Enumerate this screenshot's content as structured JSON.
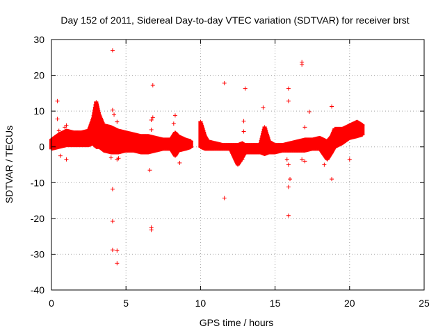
{
  "chart_data": {
    "type": "scatter",
    "title": "Day 152 of 2011, Sidereal Day-to-day VTEC variation (SDTVAR) for receiver brst",
    "xlabel": "GPS time / hours",
    "ylabel": "SDTVAR / TECUs",
    "xlim": [
      0,
      25
    ],
    "ylim": [
      -40,
      30
    ],
    "xticks": [
      0,
      5,
      10,
      15,
      20,
      25
    ],
    "yticks": [
      -40,
      -30,
      -20,
      -10,
      0,
      10,
      20,
      30
    ],
    "grid": true,
    "marker": "+",
    "color": "#ff0000",
    "series": [
      {
        "name": "SDTVAR",
        "band": [
          [
            0.0,
            -0.5,
            2.0
          ],
          [
            0.5,
            0.0,
            3.5
          ],
          [
            1.0,
            0.5,
            4.5
          ],
          [
            1.5,
            0.5,
            4.0
          ],
          [
            2.0,
            0.5,
            4.0
          ],
          [
            2.5,
            0.5,
            4.5
          ],
          [
            2.8,
            1.0,
            8.0
          ],
          [
            3.0,
            0.0,
            12.5
          ],
          [
            3.2,
            0.0,
            9.0
          ],
          [
            3.5,
            -1.0,
            6.0
          ],
          [
            4.0,
            -1.5,
            5.5
          ],
          [
            4.5,
            -1.5,
            4.5
          ],
          [
            5.0,
            -1.0,
            4.0
          ],
          [
            5.5,
            -1.0,
            3.5
          ],
          [
            6.0,
            -1.5,
            3.0
          ],
          [
            6.5,
            -1.5,
            3.0
          ],
          [
            7.0,
            -1.0,
            2.5
          ],
          [
            7.5,
            -0.5,
            2.0
          ],
          [
            8.0,
            -0.5,
            2.0
          ],
          [
            8.3,
            -2.5,
            4.0
          ],
          [
            8.5,
            -1.0,
            3.0
          ],
          [
            9.0,
            -0.5,
            2.0
          ],
          [
            9.4,
            0.0,
            1.5
          ],
          [
            10.0,
            0.0,
            7.0
          ],
          [
            10.3,
            -0.5,
            3.0
          ],
          [
            10.5,
            -0.5,
            1.5
          ],
          [
            11.0,
            -0.5,
            1.0
          ],
          [
            11.5,
            -0.5,
            0.5
          ],
          [
            12.0,
            -0.5,
            0.5
          ],
          [
            12.5,
            -5.0,
            0.5
          ],
          [
            12.8,
            -3.0,
            1.0
          ],
          [
            13.0,
            -1.5,
            0.5
          ],
          [
            13.5,
            -1.5,
            0.5
          ],
          [
            14.0,
            -1.5,
            0.5
          ],
          [
            14.3,
            -2.0,
            5.5
          ],
          [
            14.6,
            -1.5,
            1.5
          ],
          [
            15.0,
            -1.5,
            0.5
          ],
          [
            15.5,
            -1.0,
            0.5
          ],
          [
            16.0,
            -1.0,
            1.0
          ],
          [
            16.5,
            -1.0,
            1.5
          ],
          [
            17.0,
            -1.0,
            2.0
          ],
          [
            17.5,
            -0.5,
            2.0
          ],
          [
            18.0,
            -0.5,
            2.5
          ],
          [
            18.5,
            -3.5,
            1.5
          ],
          [
            18.8,
            -1.5,
            3.0
          ],
          [
            19.0,
            0.0,
            5.0
          ],
          [
            19.5,
            1.0,
            5.0
          ],
          [
            20.0,
            2.5,
            6.0
          ],
          [
            20.5,
            3.0,
            7.0
          ],
          [
            20.9,
            3.5,
            6.0
          ]
        ],
        "points": [
          [
            4.1,
            27.0
          ],
          [
            16.8,
            23.7
          ],
          [
            16.8,
            23.0
          ],
          [
            11.6,
            17.8
          ],
          [
            6.8,
            17.2
          ],
          [
            13.0,
            16.3
          ],
          [
            15.9,
            16.3
          ],
          [
            15.9,
            12.8
          ],
          [
            0.4,
            12.8
          ],
          [
            18.8,
            11.3
          ],
          [
            14.2,
            11.0
          ],
          [
            4.1,
            10.3
          ],
          [
            4.2,
            9.0
          ],
          [
            17.3,
            9.8
          ],
          [
            8.3,
            8.8
          ],
          [
            6.8,
            8.2
          ],
          [
            6.7,
            7.5
          ],
          [
            12.9,
            7.2
          ],
          [
            4.4,
            7.0
          ],
          [
            0.4,
            7.8
          ],
          [
            8.2,
            6.5
          ],
          [
            17.0,
            5.5
          ],
          [
            12.9,
            4.3
          ],
          [
            0.5,
            4.5
          ],
          [
            6.7,
            4.8
          ],
          [
            0.9,
            5.5
          ],
          [
            1.0,
            6.0
          ],
          [
            4.4,
            -3.5
          ],
          [
            4.5,
            -3.2
          ],
          [
            4.0,
            -3.0
          ],
          [
            6.6,
            -6.5
          ],
          [
            8.6,
            -4.5
          ],
          [
            12.8,
            -3.5
          ],
          [
            15.8,
            -3.5
          ],
          [
            15.9,
            -5.0
          ],
          [
            17.0,
            -4.0
          ],
          [
            18.3,
            -5.0
          ],
          [
            0.6,
            -2.5
          ],
          [
            1.0,
            -3.5
          ],
          [
            20.0,
            -3.5
          ],
          [
            16.8,
            -3.5
          ],
          [
            16.0,
            -9.0
          ],
          [
            15.9,
            -11.2
          ],
          [
            4.1,
            -11.8
          ],
          [
            18.8,
            -9.0
          ],
          [
            11.6,
            -14.3
          ],
          [
            15.9,
            -19.2
          ],
          [
            4.1,
            -20.8
          ],
          [
            6.7,
            -22.5
          ],
          [
            6.7,
            -23.2
          ],
          [
            4.1,
            -28.8
          ],
          [
            4.4,
            -29.0
          ],
          [
            4.4,
            -32.5
          ]
        ]
      }
    ]
  }
}
